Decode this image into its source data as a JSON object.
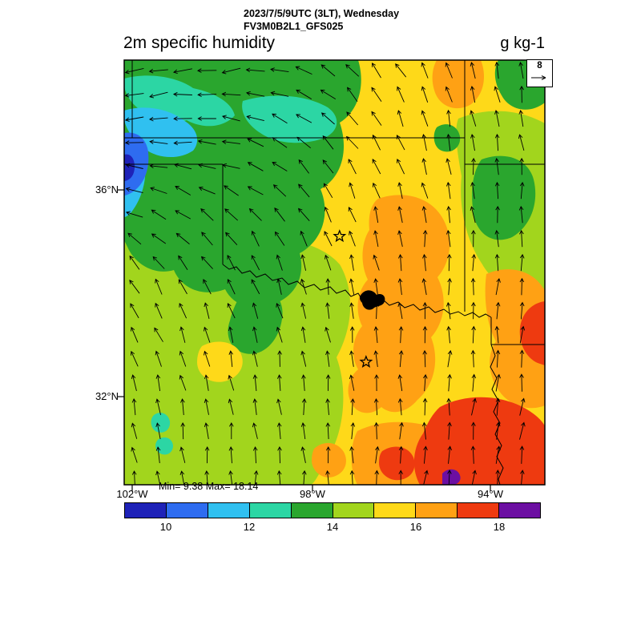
{
  "header": {
    "line1": "2023/7/5/9UTC (3LT), Wednesday",
    "line2": "FV3M0B2L1_GFS025"
  },
  "stats_text": "Min= 9.38 Max= 18.14",
  "reference_vector": {
    "label": "8"
  },
  "axes": {
    "lat_ticks": [
      {
        "label": "36°N",
        "f": 0.3057
      },
      {
        "label": "32°N",
        "f": 0.7925
      }
    ],
    "lon_ticks": [
      {
        "label": "102°W",
        "f": 0.019
      },
      {
        "label": "98°W",
        "f": 0.4476
      },
      {
        "label": "94°W",
        "f": 0.8705
      }
    ]
  },
  "colorbar": {
    "ticks": [
      {
        "text": "10",
        "f": 0.1
      },
      {
        "text": "12",
        "f": 0.3
      },
      {
        "text": "14",
        "f": 0.5
      },
      {
        "text": "16",
        "f": 0.7
      },
      {
        "text": "18",
        "f": 0.9
      }
    ]
  },
  "markers": {
    "stars": [
      {
        "fx": 0.512,
        "fy": 0.415
      },
      {
        "fx": 0.575,
        "fy": 0.711
      }
    ]
  },
  "chart_data": {
    "type": "heatmap",
    "title": "2m specific humidity",
    "units": "g kg-1",
    "valid_time": "2023/7/5/9UTC (3LT), Wednesday",
    "model": "FV3M0B2L1_GFS025",
    "min": 9.38,
    "max": 18.14,
    "contour_levels": [
      10,
      11,
      12,
      13,
      14,
      15,
      16,
      17,
      18
    ],
    "palette": [
      "#1e22b8",
      "#2e6cf0",
      "#30c0f0",
      "#2cd6a4",
      "#2aa62e",
      "#a2d51d",
      "#fed919",
      "#ffa114",
      "#ee3a10",
      "#6c0fa2"
    ],
    "colorbar_tick_labels": [
      "10",
      "12",
      "14",
      "16",
      "18"
    ],
    "lat_ticks_degN": [
      36,
      32
    ],
    "lon_ticks_degW": [
      102,
      98,
      94
    ],
    "lat_range_approx_degN": [
      30.3,
      38.5
    ],
    "lon_range_approx_degW": [
      102.2,
      92.8
    ],
    "values_g_per_kg": {
      "layout": "8 rows (north to south) x 10 cols (west to east), approximate values read from fill colors",
      "rows": [
        [
          13.2,
          12.6,
          13.4,
          13.6,
          14.2,
          15.4,
          16.4,
          15.3,
          14.4,
          13.8
        ],
        [
          11.4,
          12.3,
          13.5,
          13.6,
          14.1,
          15.2,
          15.6,
          14.8,
          13.6,
          14.3
        ],
        [
          10.2,
          12.1,
          13.4,
          13.7,
          14.6,
          15.5,
          15.9,
          15.4,
          14.1,
          13.6
        ],
        [
          12.6,
          13.4,
          14.3,
          13.8,
          14.7,
          16.3,
          16.6,
          15.6,
          14.6,
          15.9
        ],
        [
          13.7,
          14.4,
          14.6,
          14.1,
          15.4,
          16.6,
          16.9,
          16.4,
          16.6,
          17.3
        ],
        [
          14.4,
          14.7,
          15.3,
          14.6,
          15.6,
          16.4,
          16.6,
          16.7,
          17.1,
          17.6
        ],
        [
          14.6,
          15.4,
          14.7,
          15.5,
          15.7,
          16.6,
          16.5,
          17.4,
          17.6,
          17.7
        ],
        [
          14.5,
          15.1,
          15.6,
          15.4,
          15.6,
          16.1,
          16.6,
          17.6,
          17.8,
          17.5
        ]
      ]
    },
    "wind": {
      "reference_magnitude": 8,
      "angle_convention": "degrees clockwise from north (up)",
      "angles_5x5": [
        [
          -105,
          -100,
          -55,
          -18,
          -8
        ],
        [
          -88,
          -72,
          -35,
          -10,
          -3
        ],
        [
          -38,
          -26,
          -12,
          -2,
          4
        ],
        [
          -16,
          -10,
          -5,
          1,
          8
        ],
        [
          -8,
          -4,
          0,
          5,
          10
        ]
      ],
      "speeds_5x5": [
        [
          9,
          9,
          8,
          7,
          7
        ],
        [
          8,
          8,
          7,
          7,
          7
        ],
        [
          7,
          7,
          6.5,
          7,
          7
        ],
        [
          7,
          6.5,
          6.5,
          7,
          8
        ],
        [
          6.5,
          7,
          7,
          8,
          8
        ]
      ]
    }
  }
}
